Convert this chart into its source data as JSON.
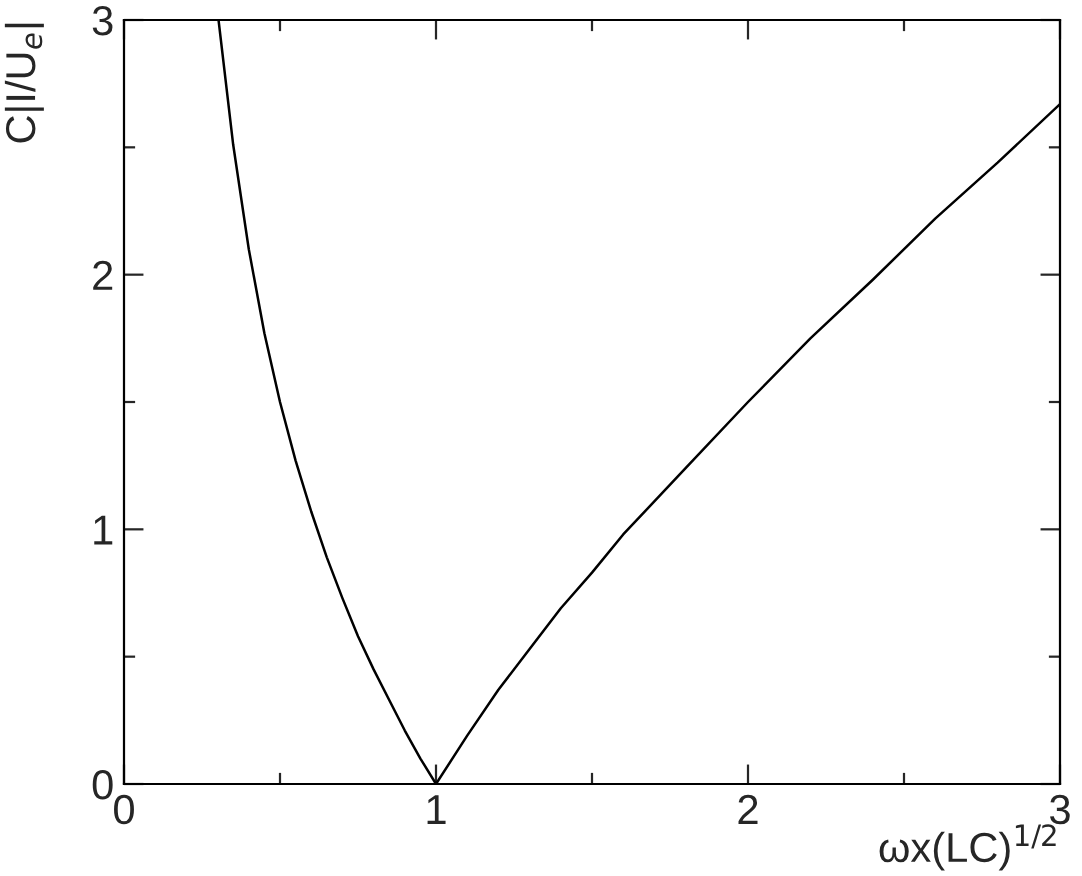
{
  "chart_data": {
    "type": "line",
    "xlabel": "ωx(LC)$^{1/2}$",
    "ylabel": "C|I/U$_{e}$|",
    "x": [
      0.303,
      0.35,
      0.4,
      0.45,
      0.5,
      0.55,
      0.6,
      0.65,
      0.7,
      0.75,
      0.8,
      0.85,
      0.9,
      0.95,
      1.0,
      1.1,
      1.2,
      1.3,
      1.4,
      1.5,
      1.6,
      1.8,
      2.0,
      2.2,
      2.4,
      2.6,
      2.8,
      3.0
    ],
    "series": [
      {
        "color": "#000000",
        "values": [
          3.0,
          2.51,
          2.1,
          1.77,
          1.5,
          1.27,
          1.07,
          0.89,
          0.73,
          0.58,
          0.45,
          0.33,
          0.21,
          0.1,
          0.0,
          0.19,
          0.37,
          0.53,
          0.69,
          0.83,
          0.98,
          1.24,
          1.5,
          1.75,
          1.98,
          2.22,
          2.44,
          2.67
        ]
      }
    ],
    "xlim": [
      0,
      3
    ],
    "ylim": [
      0,
      3
    ],
    "xticks": [
      0,
      {
        "value": 0.5,
        "label": null
      },
      1,
      {
        "value": 1.5,
        "label": null
      },
      2,
      {
        "value": 2.5,
        "label": null
      },
      3
    ],
    "yticks": [
      0,
      {
        "value": 0.5,
        "label": null
      },
      1,
      {
        "value": 1.5,
        "label": null
      },
      2,
      {
        "value": 2.5,
        "label": null
      },
      3
    ],
    "grid": false,
    "legend": false,
    "marker": "none",
    "line_style": "solid"
  }
}
